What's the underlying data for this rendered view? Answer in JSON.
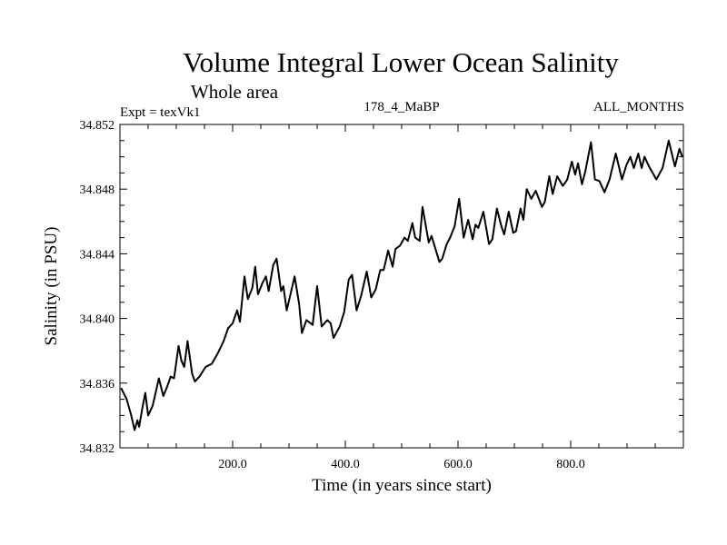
{
  "chart_data": {
    "type": "line",
    "title": "Volume Integral Lower Ocean Salinity",
    "subtitle": "Whole area",
    "annotations": {
      "left": "Expt = texVk1",
      "center": "178_4_MaBP",
      "right": "ALL_MONTHS"
    },
    "xlabel": "Time (in years since start)",
    "ylabel": "Salinity (in PSU)",
    "xlim": [
      0,
      1000
    ],
    "ylim": [
      34.832,
      34.852
    ],
    "x_ticks": [
      200,
      400,
      600,
      800
    ],
    "x_tick_labels": [
      "200.0",
      "400.0",
      "600.0",
      "800.0"
    ],
    "x_minor_step": 50,
    "y_ticks": [
      34.832,
      34.836,
      34.84,
      34.844,
      34.848,
      34.852
    ],
    "y_tick_labels": [
      "34.832",
      "34.836",
      "34.840",
      "34.844",
      "34.848",
      "34.852"
    ],
    "y_minor_step": 0.001,
    "grid": false,
    "legend": "none",
    "series": [
      {
        "name": "Salinity",
        "color": "#000000",
        "x": [
          2,
          12,
          20,
          26,
          31,
          34,
          40,
          45,
          50,
          58,
          64,
          69,
          77,
          84,
          90,
          96,
          104,
          109,
          114,
          120,
          128,
          133,
          141,
          152,
          163,
          173,
          184,
          192,
          200,
          208,
          213,
          221,
          227,
          235,
          240,
          245,
          253,
          259,
          264,
          272,
          278,
          286,
          290,
          296,
          310,
          318,
          323,
          331,
          342,
          350,
          358,
          368,
          374,
          379,
          390,
          398,
          406,
          412,
          420,
          428,
          438,
          446,
          454,
          462,
          468,
          476,
          484,
          489,
          497,
          505,
          511,
          519,
          524,
          532,
          537,
          548,
          553,
          567,
          572,
          580,
          586,
          594,
          602,
          610,
          618,
          626,
          631,
          636,
          645,
          655,
          661,
          669,
          677,
          682,
          690,
          698,
          703,
          711,
          716,
          722,
          730,
          738,
          749,
          754,
          762,
          768,
          776,
          786,
          794,
          802,
          808,
          813,
          820,
          826,
          836,
          843,
          851,
          860,
          869,
          880,
          891,
          899,
          906,
          912,
          920,
          926,
          931,
          939,
          952,
          963,
          974,
          985,
          993,
          998
        ],
        "y": [
          34.8357,
          34.835,
          34.834,
          34.8331,
          34.8337,
          34.8333,
          34.8345,
          34.8354,
          34.834,
          34.8346,
          34.8355,
          34.8363,
          34.8352,
          34.8358,
          34.8364,
          34.8363,
          34.8383,
          34.8374,
          34.837,
          34.8386,
          34.8366,
          34.8361,
          34.8364,
          34.837,
          34.8372,
          34.8378,
          34.8386,
          34.8394,
          34.8397,
          34.8405,
          34.8398,
          34.8426,
          34.8412,
          34.8419,
          34.8432,
          34.8415,
          34.8422,
          34.8426,
          34.8417,
          34.8433,
          34.8437,
          34.8417,
          34.842,
          34.8405,
          34.8426,
          34.8409,
          34.8391,
          34.8399,
          34.8396,
          34.842,
          34.8395,
          34.8399,
          34.8397,
          34.8388,
          34.8395,
          34.8404,
          34.8424,
          34.8427,
          34.8405,
          34.8414,
          34.8429,
          34.8413,
          34.8418,
          34.843,
          34.843,
          34.8442,
          34.8432,
          34.8443,
          34.8445,
          34.845,
          34.8448,
          34.8459,
          34.845,
          34.8448,
          34.8469,
          34.8447,
          34.8451,
          34.8435,
          34.8437,
          34.8446,
          34.845,
          34.8457,
          34.8474,
          34.845,
          34.8461,
          34.8449,
          34.8458,
          34.8456,
          34.8466,
          34.8446,
          34.8449,
          34.8468,
          34.8457,
          34.8452,
          34.8466,
          34.8453,
          34.8454,
          34.8468,
          34.8461,
          34.848,
          34.8474,
          34.8479,
          34.8469,
          34.8472,
          34.8488,
          34.8477,
          34.8488,
          34.8482,
          34.8486,
          34.8497,
          34.8489,
          34.8496,
          34.8483,
          34.8491,
          34.8509,
          34.8486,
          34.8485,
          34.8478,
          34.8486,
          34.8502,
          34.8486,
          34.8495,
          34.85,
          34.8493,
          34.8502,
          34.8493,
          34.85,
          34.8494,
          34.8486,
          34.8493,
          34.851,
          34.8494,
          34.8505,
          34.85
        ]
      }
    ]
  }
}
